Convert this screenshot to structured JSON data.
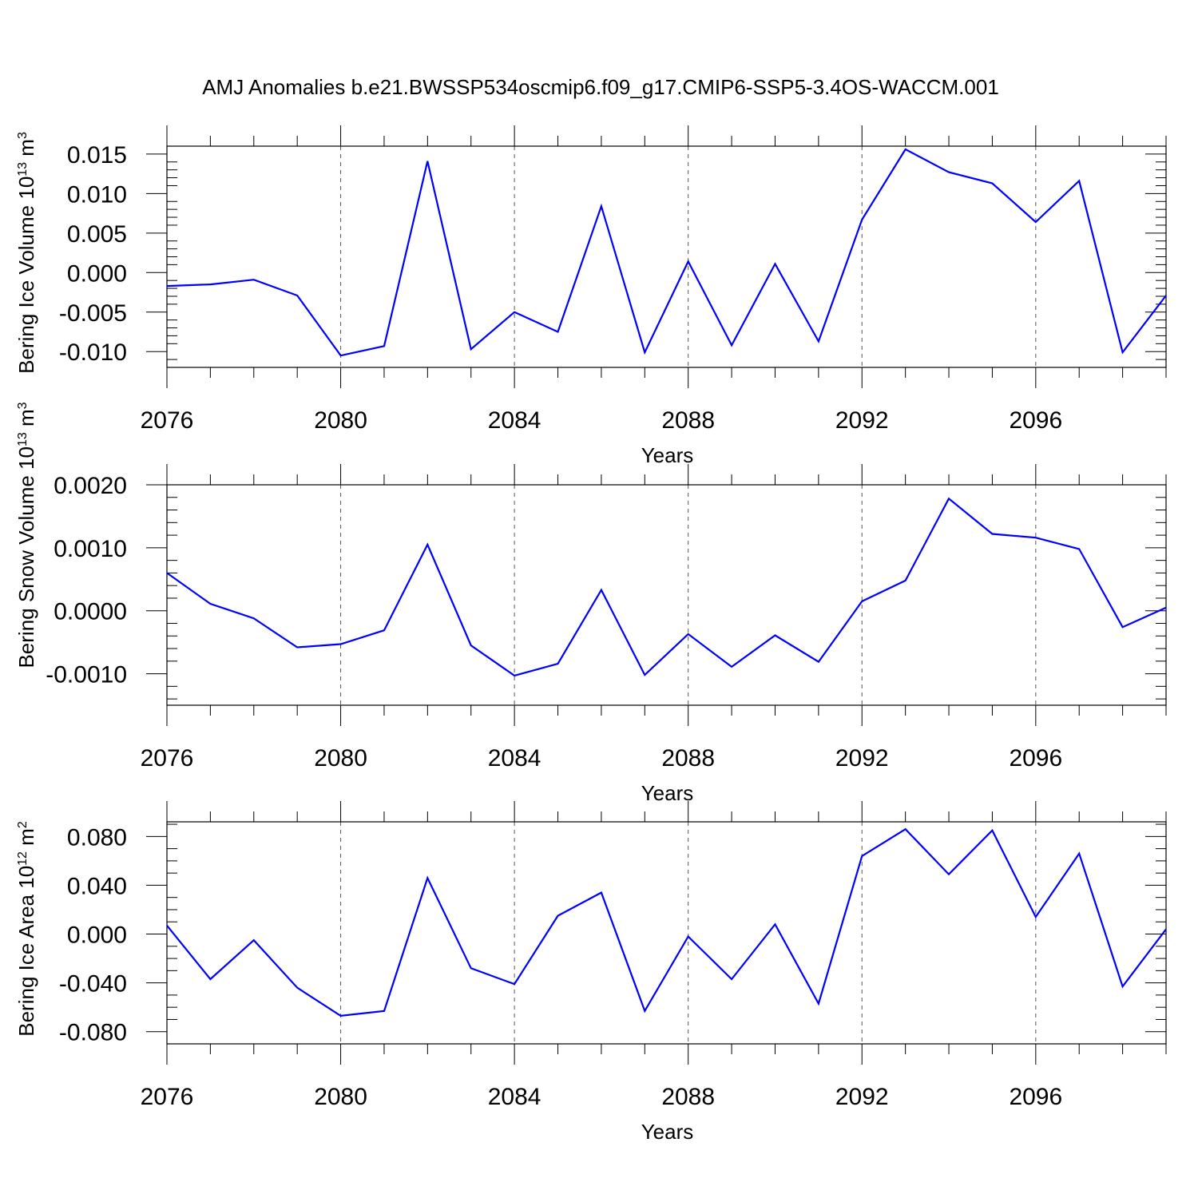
{
  "title": "AMJ Anomalies b.e21.BWSSP534oscmip6.f09_g17.CMIP6-SSP5-3.4OS-WACCM.001",
  "colors": {
    "line": "#0000ff",
    "axis": "#000000"
  },
  "chart_data": [
    {
      "type": "line",
      "ylabel": "Bering Ice Volume 10",
      "ylabel_exp": "13",
      "ylabel_unit": " m",
      "ylabel_unit_exp": "3",
      "xlabel": "Years",
      "xlim": [
        2076,
        2099
      ],
      "ylim": [
        -0.012,
        0.016
      ],
      "xticks": [
        "2076",
        "2080",
        "2084",
        "2088",
        "2092",
        "2096"
      ],
      "yticks": [
        "-0.010",
        "-0.005",
        "0.000",
        "0.005",
        "0.010",
        "0.015"
      ],
      "ytick_values": [
        -0.01,
        -0.005,
        0.0,
        0.005,
        0.01,
        0.015
      ],
      "yminor_step": 0.001,
      "x": [
        2076,
        2077,
        2078,
        2079,
        2080,
        2081,
        2082,
        2083,
        2084,
        2085,
        2086,
        2087,
        2088,
        2089,
        2090,
        2091,
        2092,
        2093,
        2094,
        2095,
        2096,
        2097,
        2098,
        2099
      ],
      "values": [
        -0.0017,
        -0.0015,
        -0.0009,
        -0.0029,
        -0.0105,
        -0.0093,
        0.0141,
        -0.0097,
        -0.005,
        -0.0075,
        0.0084,
        -0.0101,
        0.0014,
        -0.0092,
        0.0011,
        -0.0087,
        0.0067,
        0.0156,
        0.0127,
        0.0113,
        0.0064,
        0.0116,
        -0.0101,
        -0.0029
      ]
    },
    {
      "type": "line",
      "ylabel": "Bering Snow Volume 10",
      "ylabel_exp": "13",
      "ylabel_unit": " m",
      "ylabel_unit_exp": "3",
      "xlabel": "Years",
      "xlim": [
        2076,
        2099
      ],
      "ylim": [
        -0.0015,
        0.002
      ],
      "xticks": [
        "2076",
        "2080",
        "2084",
        "2088",
        "2092",
        "2096"
      ],
      "yticks": [
        "-0.0010",
        "0.0000",
        "0.0010",
        "0.0020"
      ],
      "ytick_values": [
        -0.001,
        0.0,
        0.001,
        0.002
      ],
      "yminor_step": 0.0002,
      "x": [
        2076,
        2077,
        2078,
        2079,
        2080,
        2081,
        2082,
        2083,
        2084,
        2085,
        2086,
        2087,
        2088,
        2089,
        2090,
        2091,
        2092,
        2093,
        2094,
        2095,
        2096,
        2097,
        2098,
        2099
      ],
      "values": [
        0.0006,
        0.00011,
        -0.00012,
        -0.00058,
        -0.00053,
        -0.00031,
        0.00105,
        -0.00055,
        -0.00103,
        -0.00084,
        0.00033,
        -0.00102,
        -0.00037,
        -0.00089,
        -0.00039,
        -0.00081,
        0.00015,
        0.00048,
        0.00178,
        0.00122,
        0.00116,
        0.00098,
        -0.00026,
        5e-05
      ]
    },
    {
      "type": "line",
      "ylabel": "Bering Ice Area 10",
      "ylabel_exp": "12",
      "ylabel_unit": " m",
      "ylabel_unit_exp": "2",
      "xlabel": "Years",
      "xlim": [
        2076,
        2099
      ],
      "ylim": [
        -0.09,
        0.092
      ],
      "xticks": [
        "2076",
        "2080",
        "2084",
        "2088",
        "2092",
        "2096"
      ],
      "yticks": [
        "-0.080",
        "-0.040",
        "0.000",
        "0.040",
        "0.080"
      ],
      "ytick_values": [
        -0.08,
        -0.04,
        0.0,
        0.04,
        0.08
      ],
      "yminor_step": 0.01,
      "x": [
        2076,
        2077,
        2078,
        2079,
        2080,
        2081,
        2082,
        2083,
        2084,
        2085,
        2086,
        2087,
        2088,
        2089,
        2090,
        2091,
        2092,
        2093,
        2094,
        2095,
        2096,
        2097,
        2098,
        2099
      ],
      "values": [
        0.007,
        -0.037,
        -0.005,
        -0.044,
        -0.067,
        -0.063,
        0.046,
        -0.028,
        -0.041,
        0.015,
        0.034,
        -0.063,
        -0.002,
        -0.037,
        0.008,
        -0.057,
        0.064,
        0.086,
        0.049,
        0.085,
        0.014,
        0.066,
        -0.043,
        0.004
      ]
    }
  ]
}
